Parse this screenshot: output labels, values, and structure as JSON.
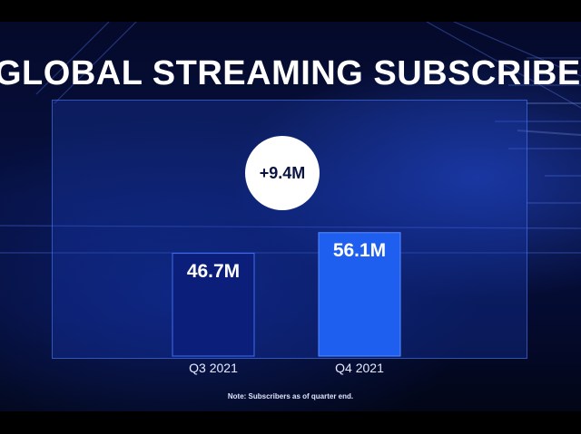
{
  "chart_data": {
    "type": "bar",
    "title": "GLOBAL STREAMING SUBSCRIBERS",
    "categories": [
      "Q3 2021",
      "Q4 2021"
    ],
    "values": [
      46.7,
      56.1
    ],
    "value_labels": [
      "46.7M",
      "56.1M"
    ],
    "difference_label": "+9.4M",
    "unit": "M",
    "ylim": [
      0,
      70
    ],
    "grid": false,
    "note": "Note: Subscribers as of quarter end.",
    "colors": {
      "bar_q3": "#0b1f7a",
      "bar_q4": "#1f5ff0",
      "accent": "#ffffff"
    }
  }
}
